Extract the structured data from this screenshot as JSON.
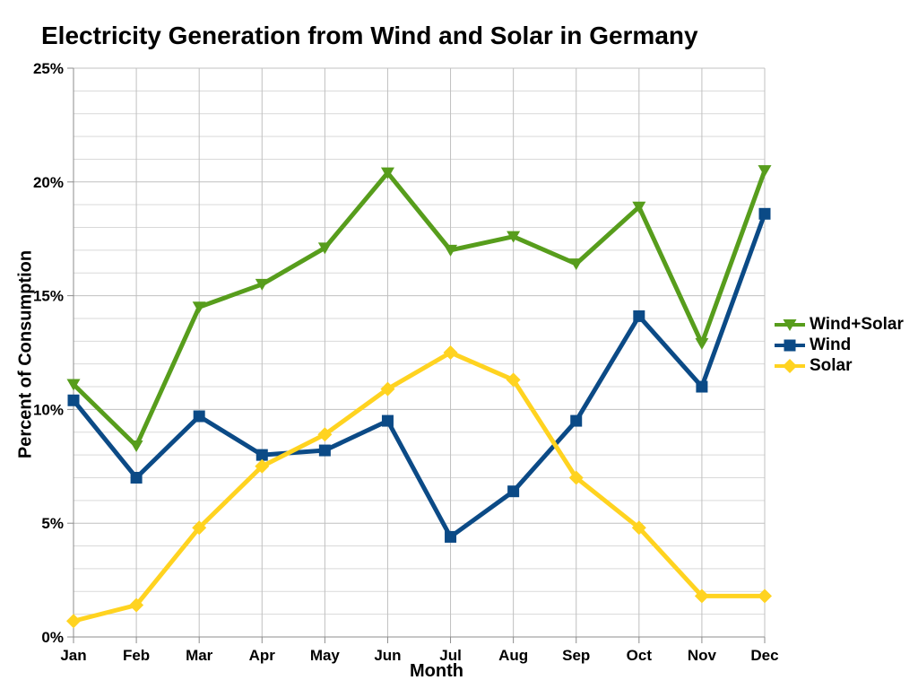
{
  "chart_data": {
    "type": "line",
    "title": "Electricity Generation from Wind and Solar in Germany",
    "xlabel": "Month",
    "ylabel": "Percent of Consumption",
    "categories": [
      "Jan",
      "Feb",
      "Mar",
      "Apr",
      "May",
      "Jun",
      "Jul",
      "Aug",
      "Sep",
      "Oct",
      "Nov",
      "Dec"
    ],
    "ylim": [
      0,
      25
    ],
    "y_tick_step": 5,
    "y_minor_step": 1,
    "y_tick_labels": [
      "0%",
      "5%",
      "10%",
      "15%",
      "20%",
      "25%"
    ],
    "grid": true,
    "legend_position": "right",
    "series": [
      {
        "name": "Wind+Solar",
        "color": "#579D1C",
        "marker": "triangle-down",
        "values": [
          11.1,
          8.4,
          14.5,
          15.5,
          17.1,
          20.4,
          17.0,
          17.6,
          16.4,
          18.9,
          12.9,
          20.5
        ]
      },
      {
        "name": "Wind",
        "color": "#0B4A86",
        "marker": "square",
        "values": [
          10.4,
          7.0,
          9.7,
          8.0,
          8.2,
          9.5,
          4.4,
          6.4,
          9.5,
          14.1,
          11.0,
          18.6
        ]
      },
      {
        "name": "Solar",
        "color": "#FFD320",
        "marker": "diamond",
        "values": [
          0.7,
          1.4,
          4.8,
          7.5,
          8.9,
          10.9,
          12.5,
          11.3,
          7.0,
          4.8,
          1.8,
          1.8
        ]
      }
    ]
  },
  "style": {
    "background": "#FFFFFF",
    "text_color": "#000000",
    "grid_major": "#C0C0C0",
    "grid_minor": "#D9D9D9",
    "axis_color": "#8C8C8C"
  }
}
